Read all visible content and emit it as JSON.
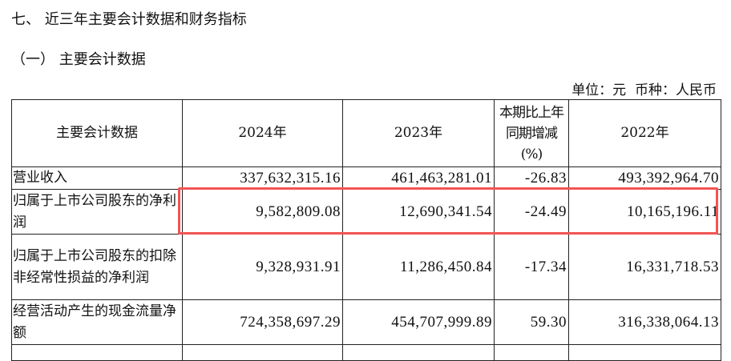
{
  "heading": "七、 近三年主要会计数据和财务指标",
  "subheading": "（一） 主要会计数据",
  "unit_line": "单位：元  币种：人民币",
  "table": {
    "headers": [
      "主要会计数据",
      "2024年",
      "2023年",
      "本期比上年同期增减(%)",
      "2022年"
    ],
    "rows": [
      {
        "label": "营业收入",
        "values": [
          "337,632,315.16",
          "461,463,281.01",
          "-26.83",
          "493,392,964.70"
        ]
      },
      {
        "label": "归属于上市公司股东的净利润",
        "values": [
          "9,582,809.08",
          "12,690,341.54",
          "-24.49",
          "10,165,196.11"
        ]
      },
      {
        "label": "归属于上市公司股东的扣除非经常性损益的净利润",
        "values": [
          "9,328,931.91",
          "11,286,450.84",
          "-17.34",
          "16,331,718.53"
        ]
      },
      {
        "label": "经营活动产生的现金流量净额",
        "values": [
          "724,358,697.29",
          "454,707,999.89",
          "59.30",
          "316,338,064.13"
        ]
      }
    ]
  },
  "highlight_color": "#f25454"
}
